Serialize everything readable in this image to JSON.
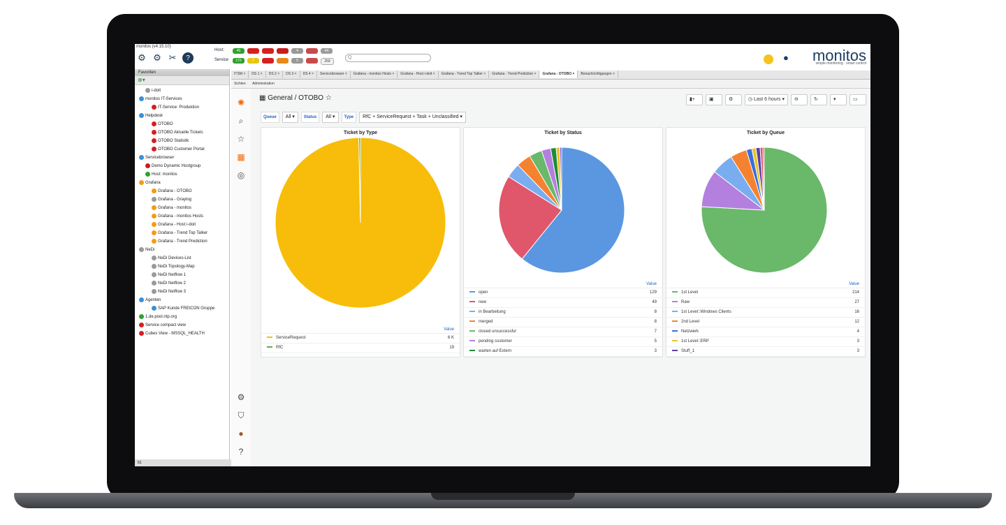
{
  "header": {
    "version": "monitos (v4.15.10)",
    "host_label": "Host:",
    "service_label": "Service",
    "host_counts": [
      {
        "value": "40",
        "color": "#2ea12e"
      },
      {
        "value": "",
        "color": "#d42020"
      },
      {
        "value": "",
        "color": "#d42020"
      },
      {
        "value": "",
        "color": "#c81d1d"
      },
      {
        "value": "4",
        "color": "#999999"
      },
      {
        "value": "",
        "color": "#c84a4a"
      },
      {
        "value": "44",
        "color": "#9c9c9c"
      }
    ],
    "service_counts": [
      {
        "value": "172",
        "color": "#2ea12e"
      },
      {
        "value": "7",
        "color": "#e7c611"
      },
      {
        "value": "",
        "color": "#d42020"
      },
      {
        "value": "",
        "color": "#e58a1a"
      },
      {
        "value": "5",
        "color": "#999999"
      },
      {
        "value": "",
        "color": "#c84a4a"
      },
      {
        "value": "259",
        "color": "#f1f1f1"
      }
    ],
    "search_placeholder": "Q",
    "brand": "monitos",
    "brand_tagline": "simple monitoring · smart control"
  },
  "sidebar": {
    "title": "Favoriten",
    "footer": "51",
    "items": [
      {
        "label": "i-doit",
        "indent": 1,
        "color": "#999999"
      },
      {
        "label": "monitos IT-Services",
        "indent": 0,
        "color": "#3a8fd6"
      },
      {
        "label": "IT-Service: Produktion",
        "indent": 2,
        "color": "#d42020"
      },
      {
        "label": "Helpdesk",
        "indent": 0,
        "color": "#3a8fd6"
      },
      {
        "label": "OTOBO",
        "indent": 2,
        "color": "#d42020"
      },
      {
        "label": "OTOBO Aktuelle Tickets",
        "indent": 2,
        "color": "#d42020"
      },
      {
        "label": "OTOBO Statistik",
        "indent": 2,
        "color": "#d42020"
      },
      {
        "label": "OTOBO Customer Portal",
        "indent": 2,
        "color": "#d42020"
      },
      {
        "label": "Servicebrowser",
        "indent": 0,
        "color": "#3a8fd6"
      },
      {
        "label": "Demo Dynamic Hostgroup",
        "indent": 1,
        "color": "#c81d1d"
      },
      {
        "label": "Host: monitos",
        "indent": 1,
        "color": "#2ea12e"
      },
      {
        "label": "Grafana",
        "indent": 0,
        "color": "#f39c12"
      },
      {
        "label": "Grafana - OTOBO",
        "indent": 2,
        "color": "#f39c12"
      },
      {
        "label": "Grafana - Graylog",
        "indent": 2,
        "color": "#999999"
      },
      {
        "label": "Grafana - monitos",
        "indent": 2,
        "color": "#f39c12"
      },
      {
        "label": "Grafana - monitos Hosts",
        "indent": 2,
        "color": "#f39c12"
      },
      {
        "label": "Grafana - Host i-doit",
        "indent": 2,
        "color": "#f39c12"
      },
      {
        "label": "Grafana - Trend Top Talker",
        "indent": 2,
        "color": "#f39c12"
      },
      {
        "label": "Grafana - Trend Prediction",
        "indent": 2,
        "color": "#f39c12"
      },
      {
        "label": "NeDi",
        "indent": 0,
        "color": "#999999"
      },
      {
        "label": "NeDi Devices-List",
        "indent": 2,
        "color": "#999999"
      },
      {
        "label": "NeDi Topology-Map",
        "indent": 2,
        "color": "#999999"
      },
      {
        "label": "NeDi Netflow 1",
        "indent": 2,
        "color": "#999999"
      },
      {
        "label": "NeDi Netflow 2",
        "indent": 2,
        "color": "#999999"
      },
      {
        "label": "NeDi Netflow 3",
        "indent": 2,
        "color": "#999999"
      },
      {
        "label": "Agenten",
        "indent": 0,
        "color": "#3a8fd6"
      },
      {
        "label": "SAP Kunde FREICON Gruppe",
        "indent": 2,
        "color": "#3a8fd6"
      },
      {
        "label": "1.de.pool.ntp.org",
        "indent": 0,
        "color": "#2ea12e"
      },
      {
        "label": "Service compact view",
        "indent": 0,
        "color": "#d42020"
      },
      {
        "label": "Cubes View - MSSQL_HEALTH",
        "indent": 0,
        "color": "#d42020"
      }
    ]
  },
  "tabs": [
    {
      "label": "ITSM",
      "active": false
    },
    {
      "label": "DS 1",
      "active": false
    },
    {
      "label": "DS 2",
      "active": false
    },
    {
      "label": "DS 3",
      "active": false
    },
    {
      "label": "DS 4",
      "active": false
    },
    {
      "label": "Servicebrowser",
      "active": false
    },
    {
      "label": "Grafana - monitos Hosts",
      "active": false
    },
    {
      "label": "Grafana - Host i-doit",
      "active": false
    },
    {
      "label": "Grafana - Trend Top Talker",
      "active": false
    },
    {
      "label": "Grafana - Trend Prediction",
      "active": false
    },
    {
      "label": "Grafana - OTOBO",
      "active": true
    },
    {
      "label": "Benachrichtigungen",
      "active": false
    }
  ],
  "subbar": {
    "view": "Sichten",
    "admin": "Administration"
  },
  "grafana": {
    "breadcrumb": "General / OTOBO",
    "time_range": "Last 6 hours",
    "vars": [
      {
        "label": "Queue",
        "value": "All"
      },
      {
        "label": "Status",
        "value": "All"
      },
      {
        "label": "Type",
        "value": "RfC + ServiceRequest + Task + Unclassified"
      }
    ],
    "legend_value_header": "Value"
  },
  "chart_data": [
    {
      "type": "pie",
      "title": "Ticket by Type",
      "series": [
        {
          "name": "ServiceRequest",
          "value": 6000,
          "display": "6 K",
          "color": "#f7bd0a"
        },
        {
          "name": "RfC",
          "value": 19,
          "display": "19",
          "color": "#5aa85a"
        }
      ]
    },
    {
      "type": "pie",
      "title": "Ticket by Status",
      "series": [
        {
          "name": "open",
          "value": 129,
          "display": "129",
          "color": "#5b97e0"
        },
        {
          "name": "new",
          "value": 49,
          "display": "49",
          "color": "#e0566a"
        },
        {
          "name": "in Bearbeitung",
          "value": 8,
          "display": "8",
          "color": "#7aadf0"
        },
        {
          "name": "merged",
          "value": 8,
          "display": "8",
          "color": "#f58231"
        },
        {
          "name": "closed unsuccessful",
          "value": 7,
          "display": "7",
          "color": "#6ab86a"
        },
        {
          "name": "pending customer",
          "value": 5,
          "display": "5",
          "color": "#b480e0"
        },
        {
          "name": "warten auf Extern",
          "value": 3,
          "display": "3",
          "color": "#1f8a3a"
        },
        {
          "name": "",
          "value": 2,
          "display": "",
          "color": "#e8c42a"
        },
        {
          "name": "",
          "value": 1,
          "display": "",
          "color": "#8a4fc2"
        }
      ]
    },
    {
      "type": "pie",
      "title": "Ticket by Queue",
      "series": [
        {
          "name": "1st Level",
          "value": 214,
          "display": "214",
          "color": "#6ab86a"
        },
        {
          "name": "Raw",
          "value": 27,
          "display": "27",
          "color": "#b480e0"
        },
        {
          "name": "1st Level::Windows Clients",
          "value": 16,
          "display": "16",
          "color": "#7aadf0"
        },
        {
          "name": "2nd Level",
          "value": 12,
          "display": "12",
          "color": "#f58231"
        },
        {
          "name": "Netzwerk",
          "value": 4,
          "display": "4",
          "color": "#3a6fd6"
        },
        {
          "name": "1st Level::ERP",
          "value": 3,
          "display": "3",
          "color": "#e8c42a"
        },
        {
          "name": "Stuff_1",
          "value": 3,
          "display": "3",
          "color": "#5a3fa8"
        },
        {
          "name": "",
          "value": 2,
          "display": "",
          "color": "#e0566a"
        },
        {
          "name": "",
          "value": 1,
          "display": "",
          "color": "#c23a3a"
        }
      ]
    }
  ]
}
